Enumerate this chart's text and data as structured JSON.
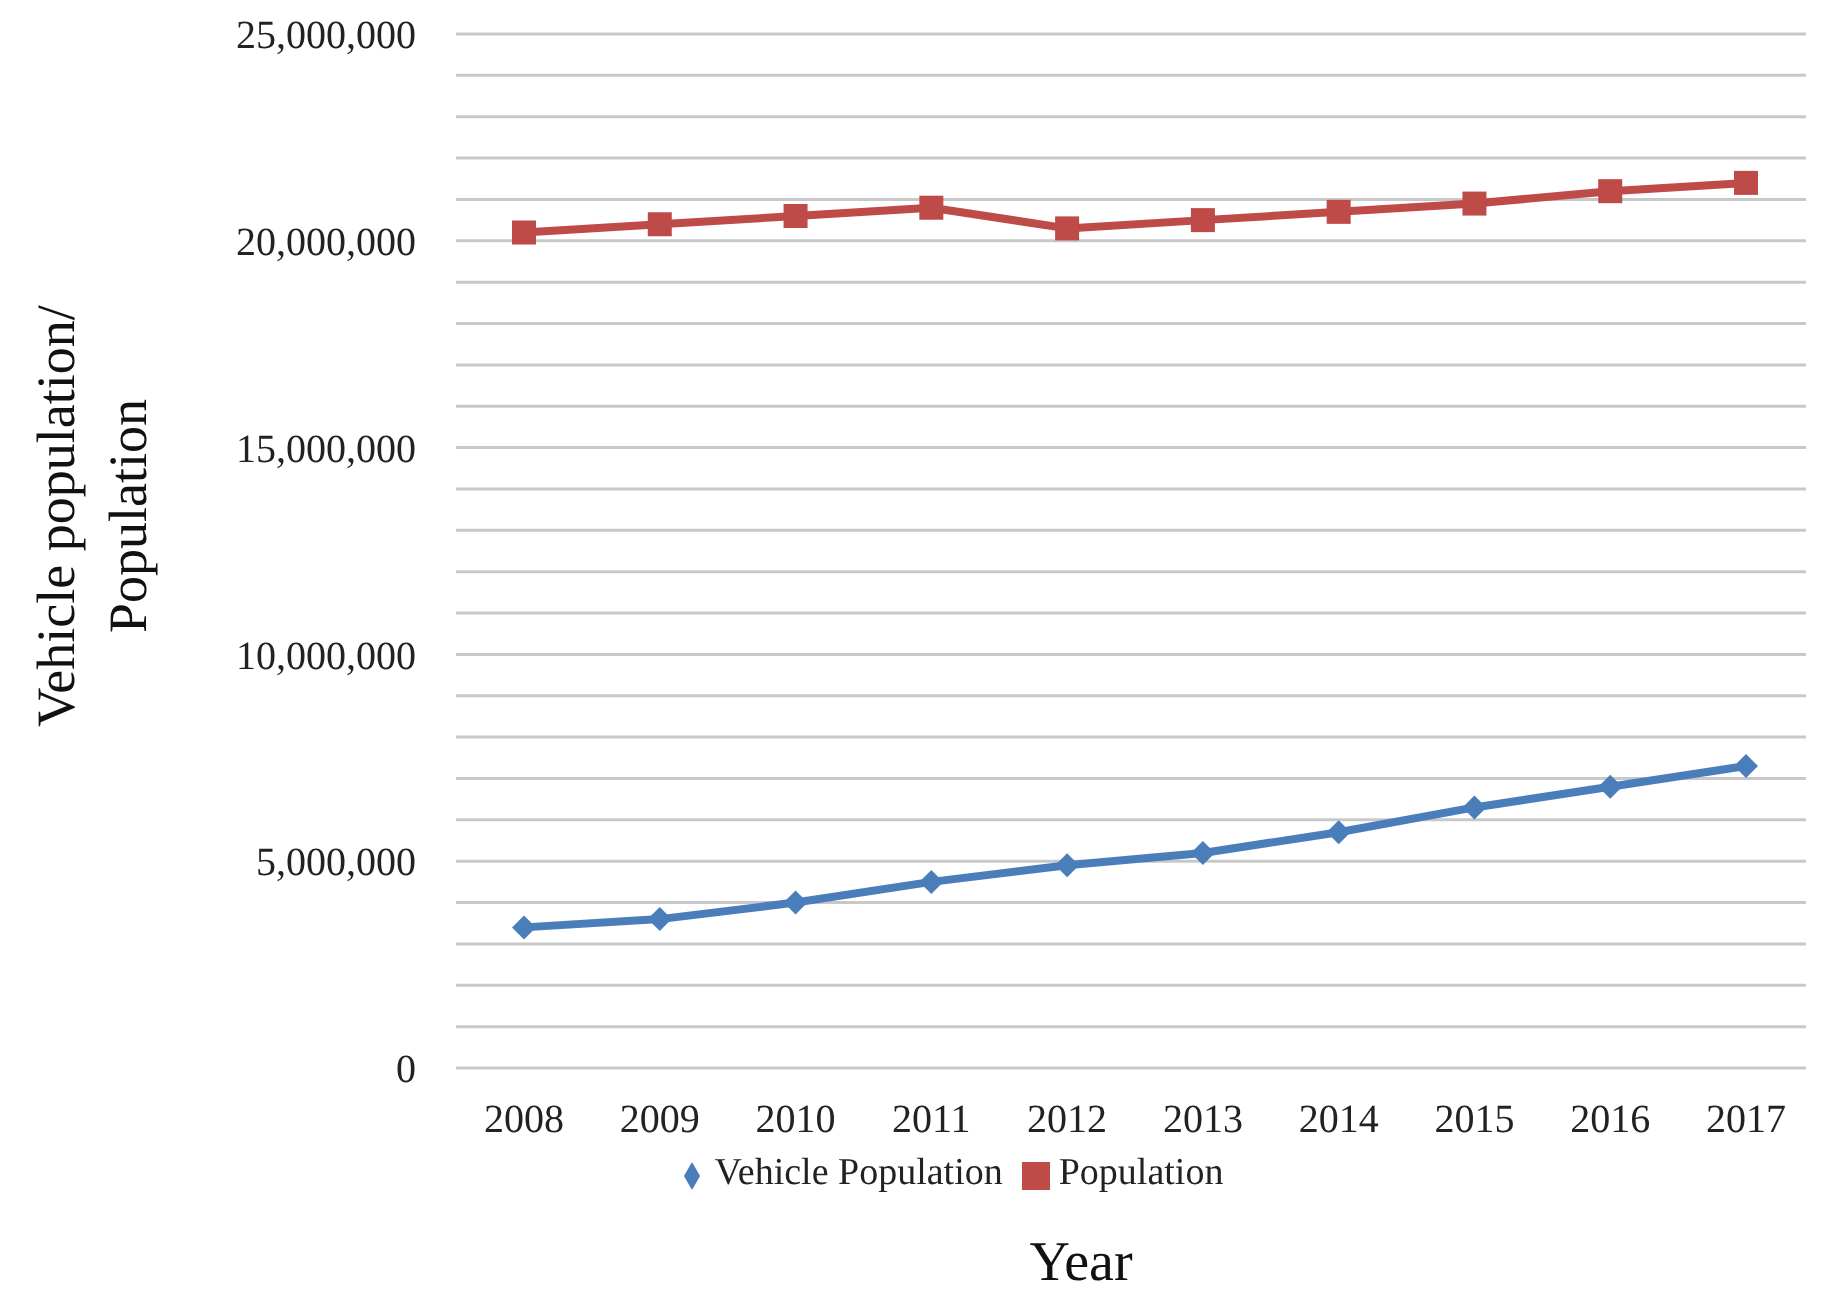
{
  "chart_data": {
    "type": "line",
    "xlabel": "Year",
    "ylabel": "Vehicle population/\nPopulation",
    "categories": [
      "2008",
      "2009",
      "2010",
      "2011",
      "2012",
      "2013",
      "2014",
      "2015",
      "2016",
      "2017"
    ],
    "series": [
      {
        "name": "Vehicle Population",
        "color": "#4a7ebb",
        "marker": "diamond",
        "values": [
          3400000,
          3600000,
          4000000,
          4500000,
          4900000,
          5200000,
          5700000,
          6300000,
          6800000,
          7300000
        ]
      },
      {
        "name": "Population",
        "color": "#be4b48",
        "marker": "square",
        "values": [
          20200000,
          20400000,
          20600000,
          20800000,
          20300000,
          20500000,
          20700000,
          20900000,
          21200000,
          21400000
        ]
      }
    ],
    "ylim": [
      0,
      25000000
    ],
    "yticks": [
      {
        "value": 0,
        "label": "0"
      },
      {
        "value": 1000000,
        "label": null
      },
      {
        "value": 2000000,
        "label": null
      },
      {
        "value": 3000000,
        "label": null
      },
      {
        "value": 4000000,
        "label": null
      },
      {
        "value": 5000000,
        "label": "5,000,000"
      },
      {
        "value": 6000000,
        "label": null
      },
      {
        "value": 7000000,
        "label": null
      },
      {
        "value": 8000000,
        "label": null
      },
      {
        "value": 9000000,
        "label": null
      },
      {
        "value": 10000000,
        "label": "10,000,000"
      },
      {
        "value": 11000000,
        "label": null
      },
      {
        "value": 12000000,
        "label": null
      },
      {
        "value": 13000000,
        "label": null
      },
      {
        "value": 14000000,
        "label": null
      },
      {
        "value": 15000000,
        "label": "15,000,000"
      },
      {
        "value": 16000000,
        "label": null
      },
      {
        "value": 17000000,
        "label": null
      },
      {
        "value": 18000000,
        "label": null
      },
      {
        "value": 19000000,
        "label": null
      },
      {
        "value": 20000000,
        "label": "20,000,000"
      },
      {
        "value": 21000000,
        "label": null
      },
      {
        "value": 22000000,
        "label": null
      },
      {
        "value": 23000000,
        "label": null
      },
      {
        "value": 24000000,
        "label": null
      },
      {
        "value": 25000000,
        "label": "25,000,000"
      }
    ],
    "grid": "y",
    "legend": "bottom",
    "line_style": "solid"
  }
}
